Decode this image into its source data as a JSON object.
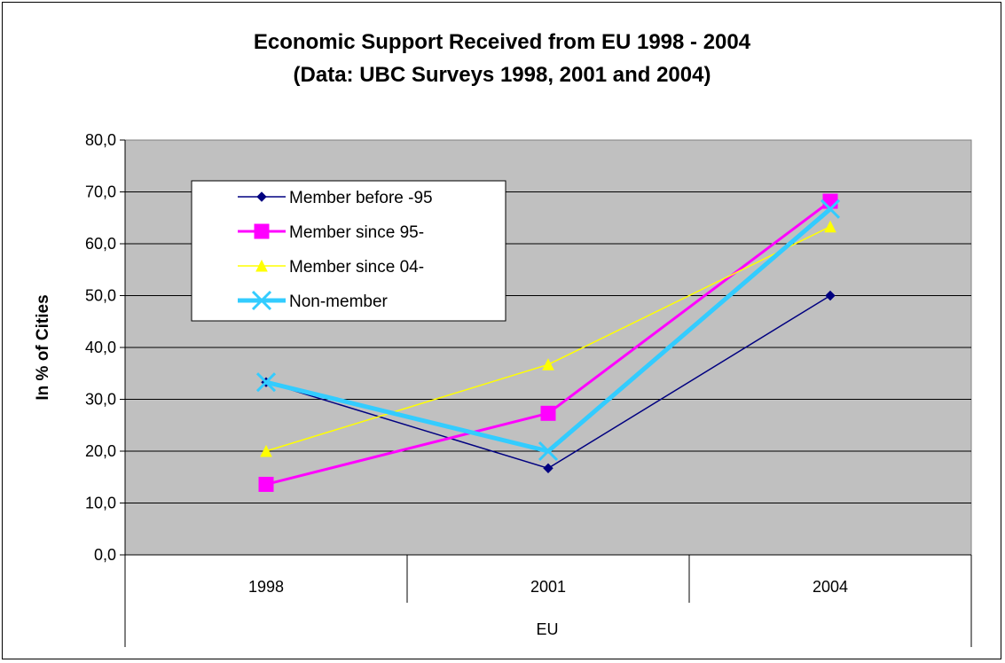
{
  "chart_data": {
    "type": "line",
    "title": "Economic Support Received from EU 1998 - 2004",
    "subtitle": "(Data: UBC Surveys 1998, 2001 and 2004)",
    "xlabel": "EU",
    "ylabel": "In % of Cities",
    "categories": [
      "1998",
      "2001",
      "2004"
    ],
    "ylim": [
      0,
      80
    ],
    "yticks": [
      "0,0",
      "10,0",
      "20,0",
      "30,0",
      "40,0",
      "50,0",
      "60,0",
      "70,0",
      "80,0"
    ],
    "grid": true,
    "legend_position": "top-left inside plot",
    "plot_background": "#c0c0c0",
    "series": [
      {
        "name": "Member before -95",
        "values": [
          33.3,
          16.7,
          50.0
        ],
        "color": "#000080",
        "marker": "diamond"
      },
      {
        "name": "Member since 95-",
        "values": [
          13.6,
          27.3,
          68.2
        ],
        "color": "#ff00ff",
        "marker": "square"
      },
      {
        "name": "Member since 04-",
        "values": [
          20.0,
          36.7,
          63.3
        ],
        "color": "#ffff00",
        "marker": "triangle"
      },
      {
        "name": "Non-member",
        "values": [
          33.3,
          20.0,
          66.7
        ],
        "color": "#33ccff",
        "marker": "x"
      }
    ]
  }
}
